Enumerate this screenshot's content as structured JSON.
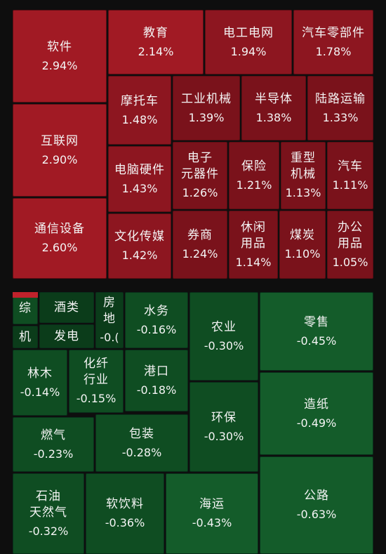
{
  "colors": {
    "background": "#0e0e0e",
    "up_strong": "#a11a24",
    "up": "#8d1620",
    "up_dark": "#7a121b",
    "down_strong": "#145c2a",
    "down": "#0f4d22",
    "down_dark": "#0b3c1a",
    "accent_red": "#c0222c",
    "text": "#f4f4f4"
  },
  "chart_data": {
    "type": "treemap",
    "title": "",
    "gainers": [
      {
        "name": "软件",
        "value": "2.94%",
        "change": 2.94
      },
      {
        "name": "互联网",
        "value": "2.90%",
        "change": 2.9
      },
      {
        "name": "通信设备",
        "value": "2.60%",
        "change": 2.6
      },
      {
        "name": "教育",
        "value": "2.14%",
        "change": 2.14
      },
      {
        "name": "电工电网",
        "value": "1.94%",
        "change": 1.94
      },
      {
        "name": "汽车零部件",
        "value": "1.78%",
        "change": 1.78
      },
      {
        "name": "摩托车",
        "value": "1.48%",
        "change": 1.48
      },
      {
        "name": "工业机械",
        "value": "1.39%",
        "change": 1.39
      },
      {
        "name": "半导体",
        "value": "1.38%",
        "change": 1.38
      },
      {
        "name": "陆路运输",
        "value": "1.33%",
        "change": 1.33
      },
      {
        "name": "电脑硬件",
        "value": "1.43%",
        "change": 1.43
      },
      {
        "name": "电子\n元器件",
        "value": "1.26%",
        "change": 1.26
      },
      {
        "name": "保险",
        "value": "1.21%",
        "change": 1.21
      },
      {
        "name": "重型\n机械",
        "value": "1.13%",
        "change": 1.13
      },
      {
        "name": "汽车",
        "value": "1.11%",
        "change": 1.11
      },
      {
        "name": "文化传媒",
        "value": "1.42%",
        "change": 1.42
      },
      {
        "name": "券商",
        "value": "1.24%",
        "change": 1.24
      },
      {
        "name": "休闲\n用品",
        "value": "1.14%",
        "change": 1.14
      },
      {
        "name": "煤炭",
        "value": "1.10%",
        "change": 1.1
      },
      {
        "name": "办公\n用品",
        "value": "1.05%",
        "change": 1.05
      }
    ],
    "losers": [
      {
        "name": "综",
        "value": "",
        "change": null
      },
      {
        "name": "机",
        "value": "",
        "change": null
      },
      {
        "name": "酒类",
        "value": "",
        "change": null
      },
      {
        "name": "发电",
        "value": "",
        "change": null
      },
      {
        "name": "房\n地",
        "value": "-0.(",
        "change": null
      },
      {
        "name": "水务",
        "value": "-0.16%",
        "change": -0.16
      },
      {
        "name": "农业",
        "value": "-0.30%",
        "change": -0.3
      },
      {
        "name": "零售",
        "value": "-0.45%",
        "change": -0.45
      },
      {
        "name": "林木",
        "value": "-0.14%",
        "change": -0.14
      },
      {
        "name": "化纤\n行业",
        "value": "-0.15%",
        "change": -0.15
      },
      {
        "name": "港口",
        "value": "-0.18%",
        "change": -0.18
      },
      {
        "name": "环保",
        "value": "-0.30%",
        "change": -0.3
      },
      {
        "name": "造纸",
        "value": "-0.49%",
        "change": -0.49
      },
      {
        "name": "燃气",
        "value": "-0.23%",
        "change": -0.23
      },
      {
        "name": "包装",
        "value": "-0.28%",
        "change": -0.28
      },
      {
        "name": "石油\n天然气",
        "value": "-0.32%",
        "change": -0.32
      },
      {
        "name": "软饮料",
        "value": "-0.36%",
        "change": -0.36
      },
      {
        "name": "海运",
        "value": "-0.43%",
        "change": -0.43
      },
      {
        "name": "公路",
        "value": "-0.63%",
        "change": -0.63
      }
    ]
  }
}
